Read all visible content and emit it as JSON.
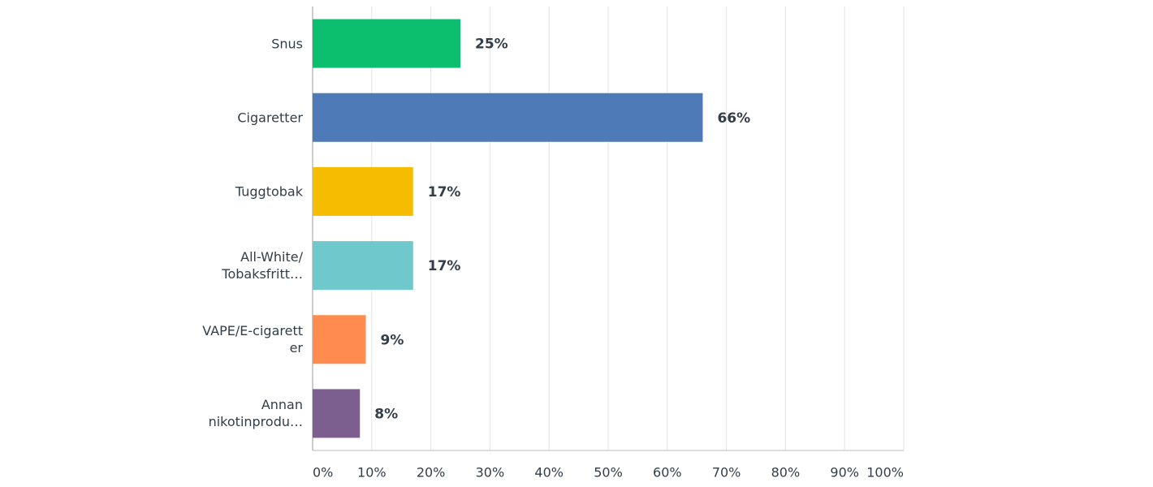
{
  "chart_data": {
    "type": "bar",
    "orientation": "horizontal",
    "categories": [
      "Snus",
      "Cigaretter",
      "Tuggtobak",
      "All-White/\nTobaksfritt…",
      "VAPE/E-cigarett\ner",
      "Annan\nnikotinprodu…"
    ],
    "values": [
      25,
      66,
      17,
      17,
      9,
      8
    ],
    "value_labels": [
      "25%",
      "66%",
      "17%",
      "17%",
      "9%",
      "8%"
    ],
    "colors": [
      "#0bbf6f",
      "#4f7ab8",
      "#f6bc00",
      "#6ec8cc",
      "#ff8b4f",
      "#7c5f8f"
    ],
    "xlim": [
      0,
      100
    ],
    "xticks": [
      {
        "value": 0,
        "label": "0%"
      },
      {
        "value": 10,
        "label": "10%"
      },
      {
        "value": 20,
        "label": "20%"
      },
      {
        "value": 30,
        "label": "30%"
      },
      {
        "value": 40,
        "label": "40%"
      },
      {
        "value": 50,
        "label": "50%"
      },
      {
        "value": 60,
        "label": "60%"
      },
      {
        "value": 70,
        "label": "70%"
      },
      {
        "value": 80,
        "label": "80%"
      },
      {
        "value": 90,
        "label": "90%"
      },
      {
        "value": 100,
        "label": "100%"
      }
    ],
    "grid": true
  }
}
